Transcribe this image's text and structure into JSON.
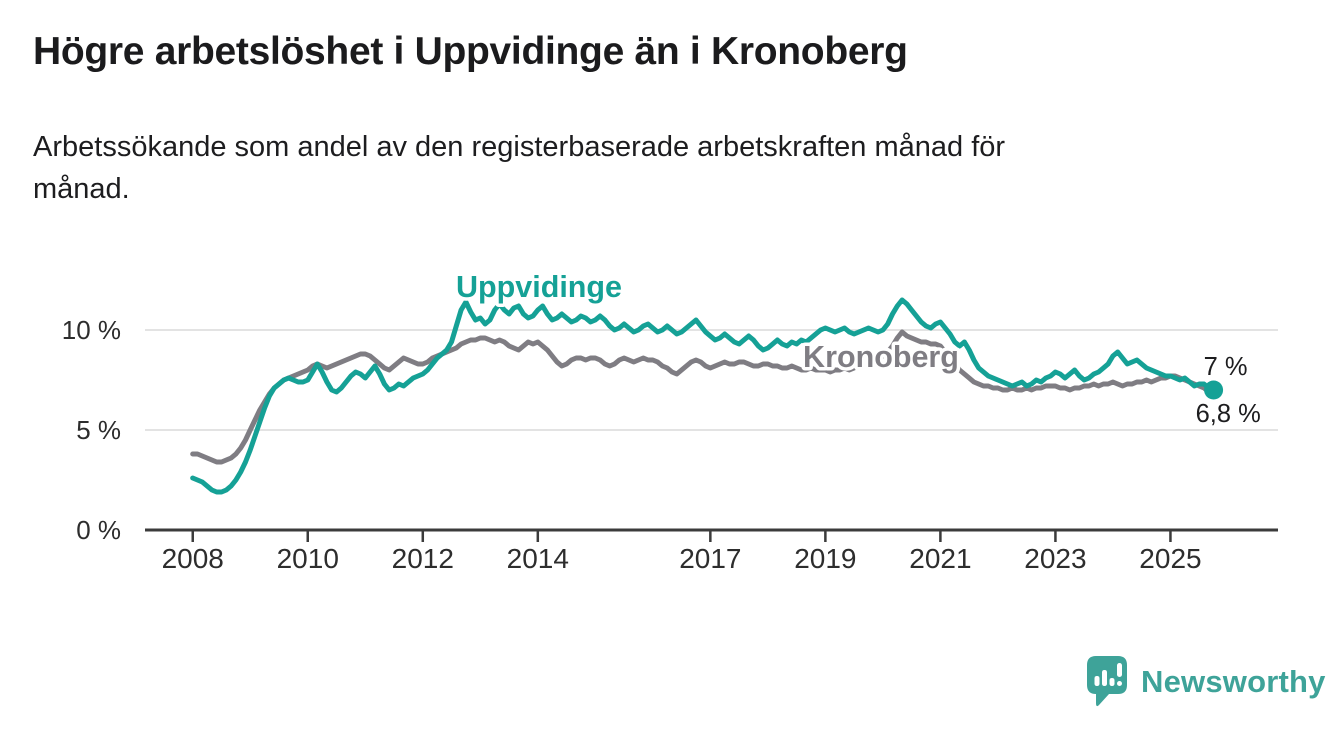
{
  "header": {
    "title": "Högre arbetslöshet i Uppvidinge än i Kronoberg",
    "subtitle": "Arbetssökande som andel av den registerbaserade arbetskraften månad för\nmånad."
  },
  "chart_data": {
    "type": "line",
    "title": "Högre arbetslöshet i Uppvidinge än i Kronoberg",
    "subtitle": "Arbetssökande som andel av den registerbaserade arbetskraften månad för månad.",
    "unit": "%",
    "x_start_year": 2008.0,
    "x_step": "monthly",
    "x_end_year": 2025.75,
    "xlim": [
      2007.17,
      2026.87
    ],
    "ylim": [
      0,
      13.4
    ],
    "xticks": [
      2008,
      2010,
      2012,
      2014,
      2017,
      2019,
      2021,
      2023,
      2025
    ],
    "yticks": [
      0,
      5,
      10
    ],
    "ytick_suffix": " %",
    "grid": "horizontal",
    "legend_position": "inline-labels",
    "axis_color": "#3b3b3b",
    "grid_color": "#e3e3e3",
    "tick_label_color": "#2d2d2d",
    "annotation_color": "#1d1d1f",
    "series": [
      {
        "name": "Uppvidinge",
        "color": "#15A196",
        "end_label": "7 %",
        "end_value": 7.0,
        "end_dot": true,
        "values": [
          2.6,
          2.5,
          2.4,
          2.2,
          2.0,
          1.9,
          1.9,
          2.0,
          2.2,
          2.5,
          2.9,
          3.4,
          4.0,
          4.7,
          5.4,
          6.1,
          6.7,
          7.1,
          7.3,
          7.5,
          7.6,
          7.5,
          7.4,
          7.4,
          7.5,
          7.9,
          8.3,
          7.9,
          7.4,
          7.0,
          6.9,
          7.1,
          7.4,
          7.7,
          7.9,
          7.8,
          7.6,
          7.9,
          8.2,
          7.8,
          7.3,
          7.0,
          7.1,
          7.3,
          7.2,
          7.4,
          7.6,
          7.7,
          7.8,
          8.0,
          8.3,
          8.6,
          8.8,
          9.0,
          9.4,
          10.2,
          11.0,
          11.4,
          10.9,
          10.5,
          10.6,
          10.3,
          10.5,
          11.0,
          11.3,
          11.0,
          10.8,
          11.1,
          11.2,
          10.8,
          10.6,
          10.7,
          11.0,
          11.2,
          10.8,
          10.5,
          10.6,
          10.8,
          10.6,
          10.4,
          10.5,
          10.7,
          10.6,
          10.4,
          10.5,
          10.7,
          10.5,
          10.2,
          10.0,
          10.1,
          10.3,
          10.1,
          9.9,
          10.0,
          10.2,
          10.3,
          10.1,
          9.9,
          10.0,
          10.2,
          10.0,
          9.8,
          9.9,
          10.1,
          10.3,
          10.5,
          10.2,
          9.9,
          9.7,
          9.5,
          9.6,
          9.8,
          9.6,
          9.4,
          9.3,
          9.5,
          9.7,
          9.5,
          9.2,
          9.0,
          9.1,
          9.3,
          9.5,
          9.3,
          9.2,
          9.4,
          9.3,
          9.5,
          9.4,
          9.6,
          9.8,
          10.0,
          10.1,
          10.0,
          9.9,
          10.0,
          10.1,
          9.9,
          9.8,
          9.9,
          10.0,
          10.1,
          10.0,
          9.9,
          10.0,
          10.3,
          10.8,
          11.2,
          11.5,
          11.3,
          11.0,
          10.7,
          10.4,
          10.2,
          10.1,
          10.3,
          10.4,
          10.1,
          9.8,
          9.4,
          9.2,
          9.4,
          9.0,
          8.5,
          8.1,
          7.9,
          7.7,
          7.6,
          7.5,
          7.4,
          7.3,
          7.2,
          7.3,
          7.4,
          7.2,
          7.3,
          7.5,
          7.4,
          7.6,
          7.7,
          7.9,
          7.8,
          7.6,
          7.8,
          8.0,
          7.7,
          7.5,
          7.6,
          7.8,
          7.9,
          8.1,
          8.3,
          8.7,
          8.9,
          8.6,
          8.3,
          8.4,
          8.5,
          8.3,
          8.1,
          8.0,
          7.9,
          7.8,
          7.7,
          7.7,
          7.6,
          7.5,
          7.6,
          7.4,
          7.2,
          7.3,
          7.3,
          7.1,
          7.0
        ]
      },
      {
        "name": "Kronoberg",
        "color": "#7F7D83",
        "end_label": "6,8 %",
        "end_value": 6.8,
        "end_dot": false,
        "values": [
          3.8,
          3.8,
          3.7,
          3.6,
          3.5,
          3.4,
          3.4,
          3.5,
          3.6,
          3.8,
          4.1,
          4.5,
          5.0,
          5.5,
          6.0,
          6.4,
          6.8,
          7.1,
          7.3,
          7.5,
          7.6,
          7.7,
          7.8,
          7.9,
          8.0,
          8.2,
          8.3,
          8.2,
          8.1,
          8.2,
          8.3,
          8.4,
          8.5,
          8.6,
          8.7,
          8.8,
          8.8,
          8.7,
          8.5,
          8.3,
          8.1,
          8.0,
          8.2,
          8.4,
          8.6,
          8.5,
          8.4,
          8.3,
          8.3,
          8.4,
          8.6,
          8.7,
          8.8,
          8.9,
          9.0,
          9.1,
          9.3,
          9.4,
          9.5,
          9.5,
          9.6,
          9.6,
          9.5,
          9.4,
          9.5,
          9.4,
          9.2,
          9.1,
          9.0,
          9.2,
          9.4,
          9.3,
          9.4,
          9.2,
          9.0,
          8.7,
          8.4,
          8.2,
          8.3,
          8.5,
          8.6,
          8.6,
          8.5,
          8.6,
          8.6,
          8.5,
          8.3,
          8.2,
          8.3,
          8.5,
          8.6,
          8.5,
          8.4,
          8.5,
          8.6,
          8.5,
          8.5,
          8.4,
          8.2,
          8.1,
          7.9,
          7.8,
          8.0,
          8.2,
          8.4,
          8.5,
          8.4,
          8.2,
          8.1,
          8.2,
          8.3,
          8.4,
          8.3,
          8.3,
          8.4,
          8.4,
          8.3,
          8.2,
          8.2,
          8.3,
          8.3,
          8.2,
          8.2,
          8.1,
          8.1,
          8.2,
          8.1,
          8.0,
          8.0,
          8.1,
          8.0,
          8.0,
          8.0,
          7.9,
          8.0,
          8.0,
          8.1,
          8.0,
          8.1,
          8.2,
          8.2,
          8.3,
          8.4,
          8.5,
          8.7,
          8.9,
          9.2,
          9.6,
          9.9,
          9.7,
          9.6,
          9.5,
          9.4,
          9.4,
          9.3,
          9.3,
          9.2,
          8.9,
          8.6,
          8.3,
          8.0,
          7.8,
          7.6,
          7.4,
          7.3,
          7.2,
          7.2,
          7.1,
          7.1,
          7.0,
          7.0,
          7.1,
          7.0,
          7.0,
          7.1,
          7.0,
          7.1,
          7.1,
          7.2,
          7.2,
          7.2,
          7.1,
          7.1,
          7.0,
          7.1,
          7.1,
          7.2,
          7.2,
          7.3,
          7.2,
          7.3,
          7.3,
          7.4,
          7.3,
          7.2,
          7.3,
          7.3,
          7.4,
          7.4,
          7.5,
          7.4,
          7.5,
          7.6,
          7.6,
          7.7,
          7.7,
          7.6,
          7.5,
          7.4,
          7.3,
          7.2,
          7.1,
          6.9,
          6.8
        ]
      }
    ]
  },
  "branding": {
    "logo_text": "Newsworthy",
    "brand_color": "#3EA399",
    "icon": "newsworthy-speech-bubble-bar-chart-icon"
  }
}
